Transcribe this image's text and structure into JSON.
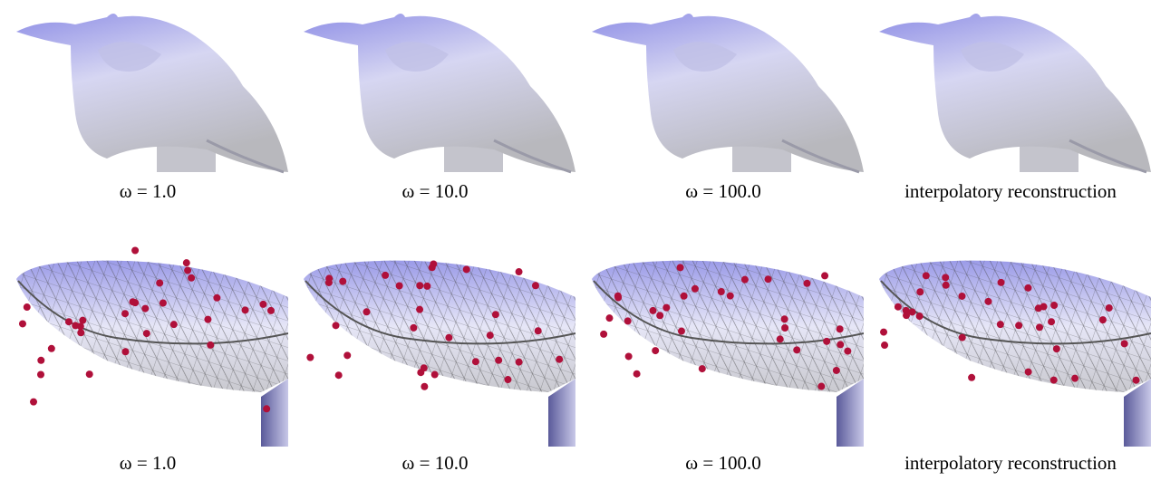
{
  "rows": [
    {
      "captions": [
        "ω = 1.0",
        "ω = 10.0",
        "ω = 100.0",
        "interpolatory reconstruction"
      ]
    },
    {
      "captions": [
        "ω = 1.0",
        "ω = 10.0",
        "ω = 100.0",
        "interpolatory reconstruction"
      ]
    }
  ]
}
